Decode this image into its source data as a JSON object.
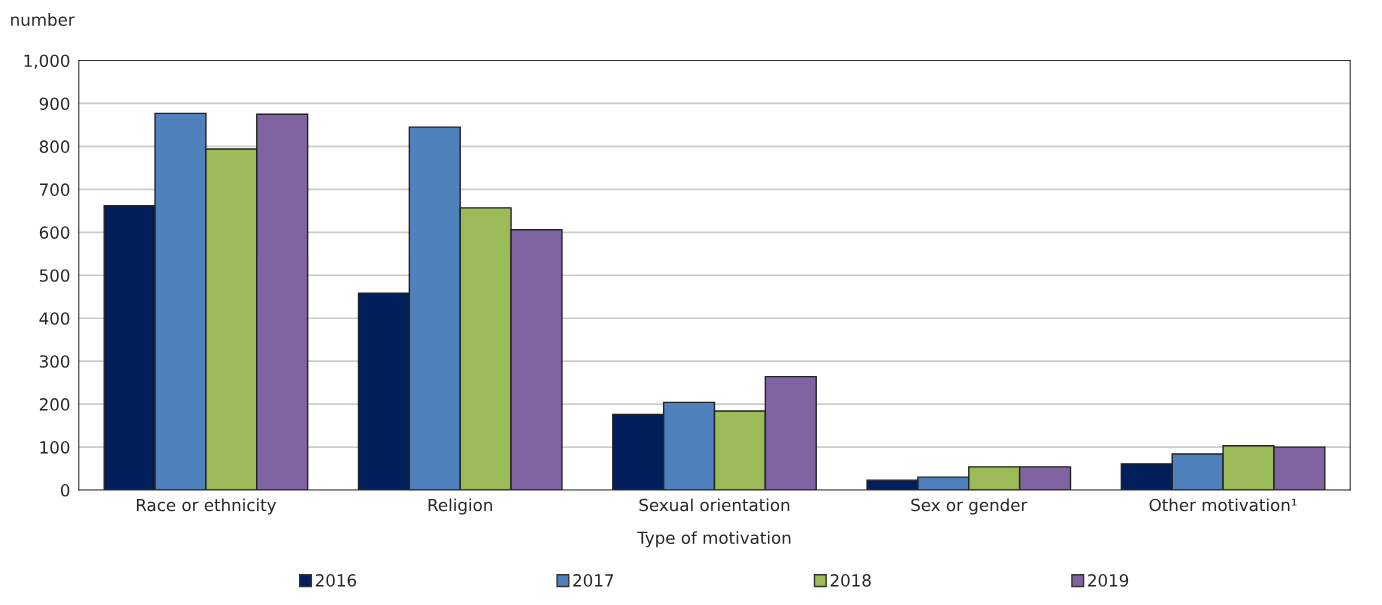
{
  "chart_data": {
    "type": "bar",
    "ylabel": "number",
    "xlabel": "Type of motivation",
    "categories": [
      "Race or ethnicity",
      "Religion",
      "Sexual orientation",
      "Sex or gender",
      "Other motivation¹"
    ],
    "series": [
      {
        "name": "2016",
        "color": "#001f5b",
        "values": [
          662,
          458,
          176,
          23,
          61
        ]
      },
      {
        "name": "2017",
        "color": "#4f81bd",
        "values": [
          877,
          845,
          204,
          30,
          84
        ]
      },
      {
        "name": "2018",
        "color": "#9bbb59",
        "values": [
          794,
          657,
          184,
          54,
          103
        ]
      },
      {
        "name": "2019",
        "color": "#8064a2",
        "values": [
          875,
          606,
          264,
          54,
          100
        ]
      }
    ],
    "ylim": [
      0,
      1000
    ],
    "yticks": [
      0,
      100,
      200,
      300,
      400,
      500,
      600,
      700,
      800,
      900,
      {
        "value": 1000,
        "label": "1,000"
      }
    ],
    "grid": "y",
    "legend": "bottom"
  }
}
